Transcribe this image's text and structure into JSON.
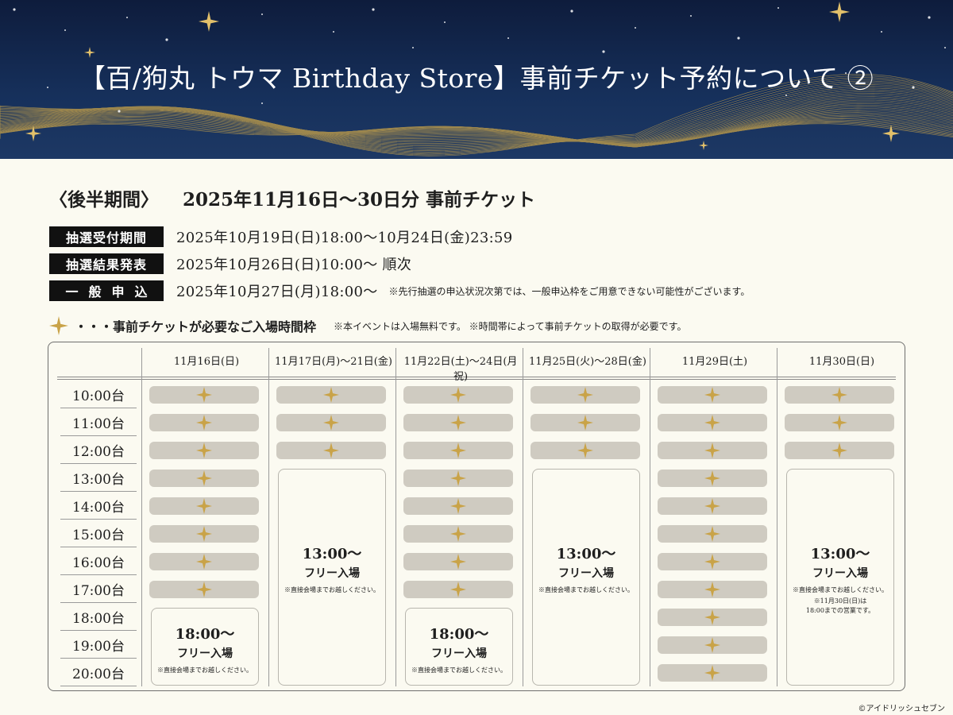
{
  "header": {
    "title": "【百/狗丸 トウマ Birthday Store】事前チケット予約について ②",
    "colors": {
      "sky": "#16305b",
      "gold": "#d4af4e"
    }
  },
  "section": {
    "label": "〈後半期間〉",
    "title": "2025年11月16日〜30日分 事前チケット"
  },
  "info": [
    {
      "label": "抽選受付期間",
      "value": "2025年10月19日(日)18:00〜10月24日(金)23:59",
      "note": ""
    },
    {
      "label": "抽選結果発表",
      "value": "2025年10月26日(日)10:00〜 順次",
      "note": ""
    },
    {
      "label": "一般申込",
      "value": "2025年10月27日(月)18:00〜",
      "note": "※先行抽選の申込状況次第では、一般申込枠をご用意できない可能性がございます。"
    }
  ],
  "legend": {
    "icon": "gold-star-icon",
    "text": "・・・事前チケットが必要なご入場時間枠",
    "note": "※本イベントは入場無料です。 ※時間帯によって事前チケットの取得が必要です。"
  },
  "schedule": {
    "columns": [
      "11月16日(日)",
      "11月17日(月)〜21日(金)",
      "11月22日(土)〜24日(月祝)",
      "11月25日(火)〜28日(金)",
      "11月29日(土)",
      "11月30日(日)"
    ],
    "times": [
      "10:00台",
      "11:00台",
      "12:00台",
      "13:00台",
      "14:00台",
      "15:00台",
      "16:00台",
      "17:00台",
      "18:00台",
      "19:00台",
      "20:00台"
    ],
    "ticket_slots_per_column": [
      8,
      3,
      8,
      3,
      11,
      3
    ],
    "free_entry": [
      {
        "column": 0,
        "start_row": 8,
        "time": "18:00〜",
        "label": "フリー入場",
        "note": "※直接会場までお越しください。"
      },
      {
        "column": 1,
        "start_row": 3,
        "time": "13:00〜",
        "label": "フリー入場",
        "note": "※直接会場までお越しください。"
      },
      {
        "column": 2,
        "start_row": 8,
        "time": "18:00〜",
        "label": "フリー入場",
        "note": "※直接会場までお越しください。"
      },
      {
        "column": 3,
        "start_row": 3,
        "time": "13:00〜",
        "label": "フリー入場",
        "note": "※直接会場までお越しください。"
      },
      {
        "column": 5,
        "start_row": 3,
        "time": "13:00〜",
        "label": "フリー入場",
        "note": "※直接会場までお越しください。",
        "note2": "※11月30日(日)は\n18:00までの営業です。"
      }
    ]
  },
  "copyright": "©アイドリッシュセブン"
}
